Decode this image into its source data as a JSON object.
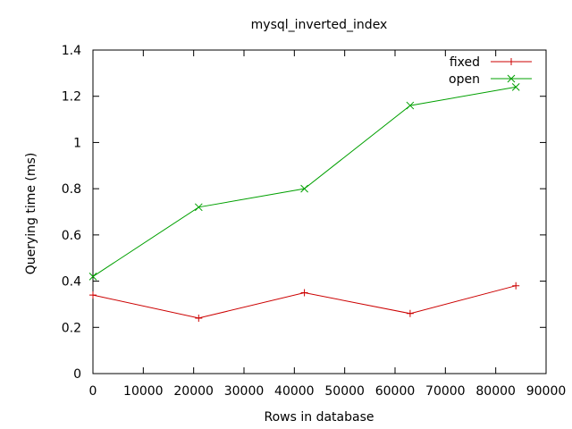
{
  "chart_data": {
    "type": "line",
    "title": "mysql_inverted_index",
    "xlabel": "Rows in database",
    "ylabel": "Querying time (ms)",
    "xlim": [
      0,
      90000
    ],
    "ylim": [
      0,
      1.4
    ],
    "xticks": [
      0,
      10000,
      20000,
      30000,
      40000,
      50000,
      60000,
      70000,
      80000,
      90000
    ],
    "yticks": [
      0,
      0.2,
      0.4,
      0.6,
      0.8,
      1,
      1.2,
      1.4
    ],
    "grid": false,
    "legend_position": "top-right",
    "series": [
      {
        "name": "fixed",
        "color": "#cc0000",
        "marker": "plus",
        "x": [
          0,
          21000,
          42000,
          63000,
          84000
        ],
        "values": [
          0.34,
          0.24,
          0.35,
          0.26,
          0.38
        ]
      },
      {
        "name": "open",
        "color": "#00a000",
        "marker": "cross",
        "x": [
          0,
          21000,
          42000,
          63000,
          84000
        ],
        "values": [
          0.42,
          0.72,
          0.8,
          1.16,
          1.24
        ]
      }
    ]
  }
}
